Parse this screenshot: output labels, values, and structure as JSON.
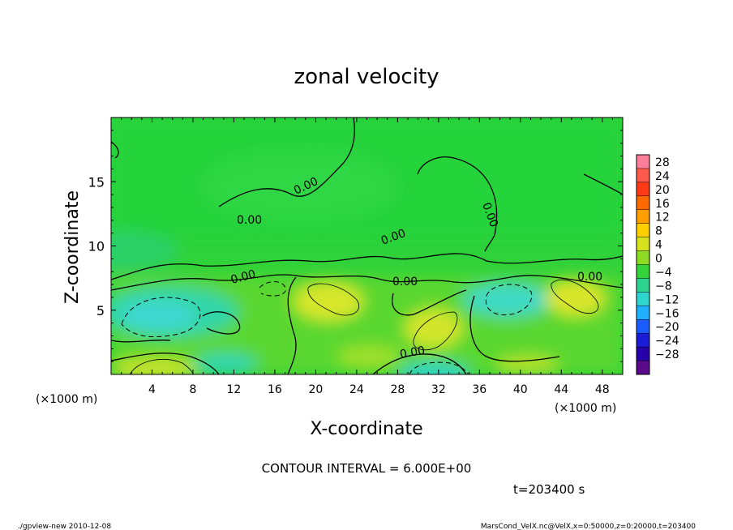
{
  "chart_data": {
    "type": "heatmap",
    "title": "zonal velocity",
    "xlabel": "X-coordinate",
    "ylabel": "Z-coordinate",
    "x_unit_left": "(×1000 m)",
    "x_unit_right": "(×1000 m)",
    "xlim": [
      0,
      50
    ],
    "ylim": [
      0,
      20
    ],
    "x_ticks": [
      4,
      8,
      12,
      16,
      20,
      24,
      28,
      32,
      36,
      40,
      44,
      48
    ],
    "y_ticks": [
      5,
      10,
      15
    ],
    "colorbar_ticks": [
      28,
      24,
      20,
      16,
      12,
      8,
      4,
      0,
      -4,
      -8,
      -12,
      -16,
      -20,
      -24,
      -28
    ],
    "contour_interval_label": "CONTOUR INTERVAL = 6.000E+00",
    "time_label": "t=203400 s",
    "contour_labels": [
      "0.00",
      "0.00",
      "0.00",
      "0.00",
      "0.00",
      "0.00",
      "0.00",
      "0.00"
    ],
    "features": [
      {
        "x": 21.5,
        "z": 6.0,
        "value": 6,
        "sign": "positive"
      },
      {
        "x": 31.5,
        "z": 3.5,
        "value": 6,
        "sign": "positive"
      },
      {
        "x": 45.5,
        "z": 6.5,
        "value": 6,
        "sign": "positive"
      },
      {
        "x": 6.0,
        "z": 4.5,
        "value": -6,
        "sign": "negative"
      },
      {
        "x": 39.0,
        "z": 5.5,
        "value": -6,
        "sign": "negative"
      },
      {
        "x": 30.5,
        "z": 0.5,
        "value": -10,
        "sign": "negative"
      },
      {
        "x": 4.0,
        "z": 0.5,
        "value": 6,
        "sign": "positive"
      }
    ]
  },
  "footer": {
    "left": "./gpview-new  2010-12-08",
    "right": "MarsCond_VelX.nc@VelX,x=0:50000,z=0:20000,t=203400"
  }
}
